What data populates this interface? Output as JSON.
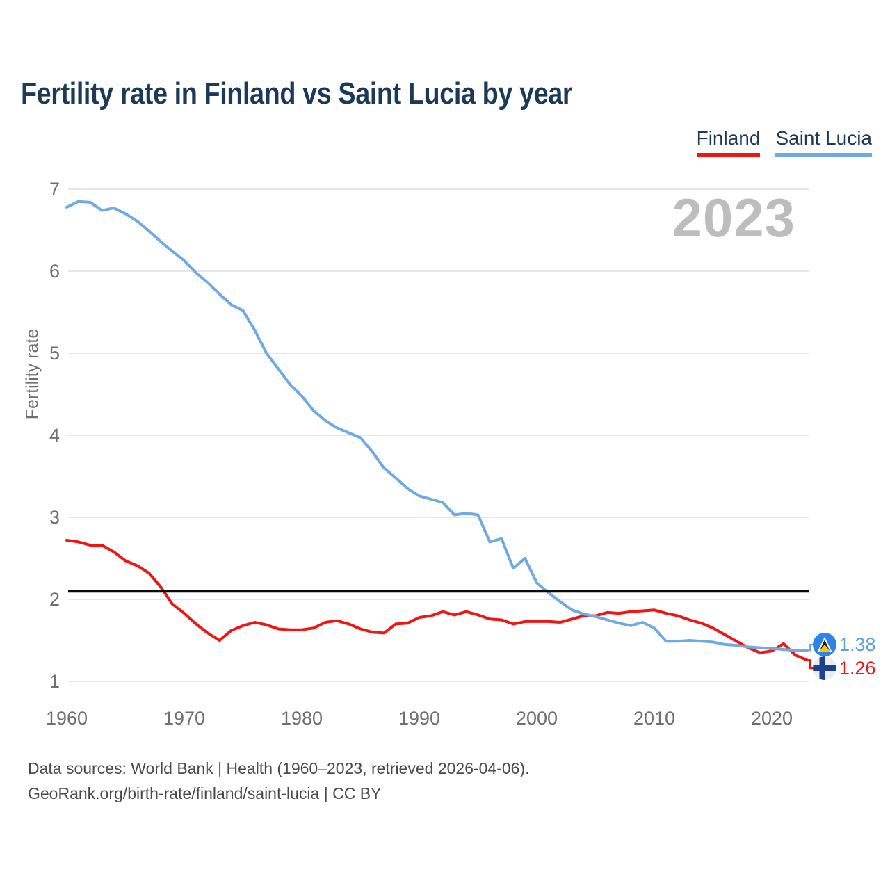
{
  "title": "Fertility rate in Finland vs Saint Lucia by year",
  "watermark": "2023",
  "legend": {
    "items": [
      {
        "label": "Finland",
        "color": "#f01412"
      },
      {
        "label": "Saint Lucia",
        "color": "#6faae2"
      }
    ]
  },
  "end_labels": {
    "saint_lucia": {
      "series": "Saint Lucia",
      "value": "1.38",
      "color": "#5ba1e0",
      "flag": "saint-lucia-flag"
    },
    "finland": {
      "series": "Finland",
      "value": "1.26",
      "color": "#f01412",
      "flag": "finland-flag"
    }
  },
  "footer": {
    "line1": "Data sources: World Bank | Health (1960–2023, retrieved 2026-04-06).",
    "line2": "GeoRank.org/birth-rate/finland/saint-lucia | CC BY"
  },
  "colors": {
    "title": "#1b3a58",
    "axis_text": "#6f6f6f",
    "grid": "#e6e6e6",
    "reference_line": "#0a0a0a",
    "watermark": "#bdbdbd",
    "footer_text": "#4a4a4a",
    "background": "#ffffff"
  },
  "chart_data": {
    "type": "line",
    "title": "Fertility rate in Finland vs Saint Lucia by year",
    "xlabel": "",
    "ylabel": "Fertility rate",
    "ylim": [
      1,
      7
    ],
    "yticks": [
      1,
      2,
      3,
      4,
      5,
      6,
      7
    ],
    "xticks": [
      1960,
      1970,
      1980,
      1990,
      2000,
      2010,
      2020
    ],
    "grid": true,
    "legend_position": "top-right",
    "reference_line": {
      "value": 2.1,
      "color": "#0a0a0a"
    },
    "x": [
      1960,
      1961,
      1962,
      1963,
      1964,
      1965,
      1966,
      1967,
      1968,
      1969,
      1970,
      1971,
      1972,
      1973,
      1974,
      1975,
      1976,
      1977,
      1978,
      1979,
      1980,
      1981,
      1982,
      1983,
      1984,
      1985,
      1986,
      1987,
      1988,
      1989,
      1990,
      1991,
      1992,
      1993,
      1994,
      1995,
      1996,
      1997,
      1998,
      1999,
      2000,
      2001,
      2002,
      2003,
      2004,
      2005,
      2006,
      2007,
      2008,
      2009,
      2010,
      2011,
      2012,
      2013,
      2014,
      2015,
      2016,
      2017,
      2018,
      2019,
      2020,
      2021,
      2022,
      2023
    ],
    "series": [
      {
        "name": "Finland",
        "color": "#f01412",
        "final_value": 1.26,
        "values": [
          2.72,
          2.7,
          2.66,
          2.66,
          2.58,
          2.47,
          2.41,
          2.32,
          2.15,
          1.94,
          1.83,
          1.7,
          1.59,
          1.5,
          1.62,
          1.68,
          1.72,
          1.69,
          1.64,
          1.63,
          1.63,
          1.65,
          1.72,
          1.74,
          1.7,
          1.64,
          1.6,
          1.59,
          1.7,
          1.71,
          1.78,
          1.8,
          1.85,
          1.81,
          1.85,
          1.81,
          1.76,
          1.75,
          1.7,
          1.73,
          1.73,
          1.73,
          1.72,
          1.76,
          1.8,
          1.8,
          1.84,
          1.83,
          1.85,
          1.86,
          1.87,
          1.83,
          1.8,
          1.75,
          1.71,
          1.65,
          1.57,
          1.49,
          1.41,
          1.35,
          1.37,
          1.46,
          1.32,
          1.26
        ]
      },
      {
        "name": "Saint Lucia",
        "color": "#6faae2",
        "final_value": 1.38,
        "values": [
          6.78,
          6.85,
          6.84,
          6.74,
          6.77,
          6.7,
          6.61,
          6.49,
          6.36,
          6.24,
          6.13,
          5.98,
          5.86,
          5.72,
          5.59,
          5.52,
          5.28,
          5.0,
          4.81,
          4.62,
          4.48,
          4.3,
          4.18,
          4.09,
          4.03,
          3.97,
          3.8,
          3.6,
          3.48,
          3.35,
          3.26,
          3.22,
          3.18,
          3.03,
          3.05,
          3.03,
          2.7,
          2.74,
          2.38,
          2.5,
          2.2,
          2.08,
          1.97,
          1.87,
          1.82,
          1.79,
          1.75,
          1.71,
          1.68,
          1.72,
          1.65,
          1.49,
          1.49,
          1.5,
          1.49,
          1.48,
          1.45,
          1.44,
          1.42,
          1.41,
          1.4,
          1.39,
          1.38,
          1.38
        ]
      }
    ]
  }
}
